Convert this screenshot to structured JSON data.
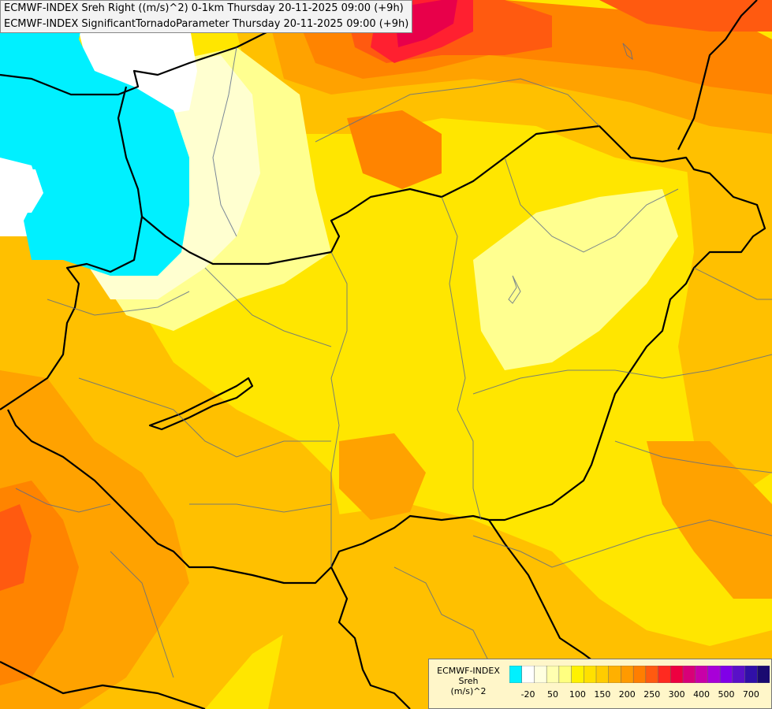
{
  "header": {
    "line1": "ECMWF-INDEX Sreh Right ((m/s)^2) 0-1km Thursday 20-11-2025 09:00 (+9h)",
    "line2": "ECMWF-INDEX SignificantTornadoParameter Thursday 20-11-2025 09:00 (+9h)"
  },
  "legend": {
    "title": [
      "ECMWF-INDEX",
      "Sreh",
      "(m/s)^2"
    ],
    "colors": [
      "#00f0ff",
      "#ffffff",
      "#ffffe0",
      "#ffffb0",
      "#ffff80",
      "#fff200",
      "#ffe000",
      "#ffcc00",
      "#ffb000",
      "#ff9a00",
      "#ff7e00",
      "#ff5a10",
      "#ff2a20",
      "#ee0040",
      "#d80078",
      "#c800a8",
      "#a800d8",
      "#8000e8",
      "#5a10c8",
      "#3010a8",
      "#1a0a70"
    ],
    "ticks": [
      "-20",
      "50",
      "100",
      "150",
      "200",
      "250",
      "300",
      "400",
      "500",
      "700"
    ]
  },
  "map": {
    "background": "#ffe600",
    "layers": {
      "cyan": "#00f0ff",
      "white": "#ffffff",
      "pale": "#ffffd0",
      "lightyellow": "#ffff90",
      "yellow": "#ffee00",
      "gold": "#ffd800",
      "amber": "#ffc000",
      "orange": "#ffa200",
      "darkorange": "#ff8400",
      "redorange": "#ff5a10",
      "red": "#ff2030",
      "crimson": "#e8004a"
    },
    "border_color": "#000000",
    "river_color": "#5a6a8a"
  }
}
